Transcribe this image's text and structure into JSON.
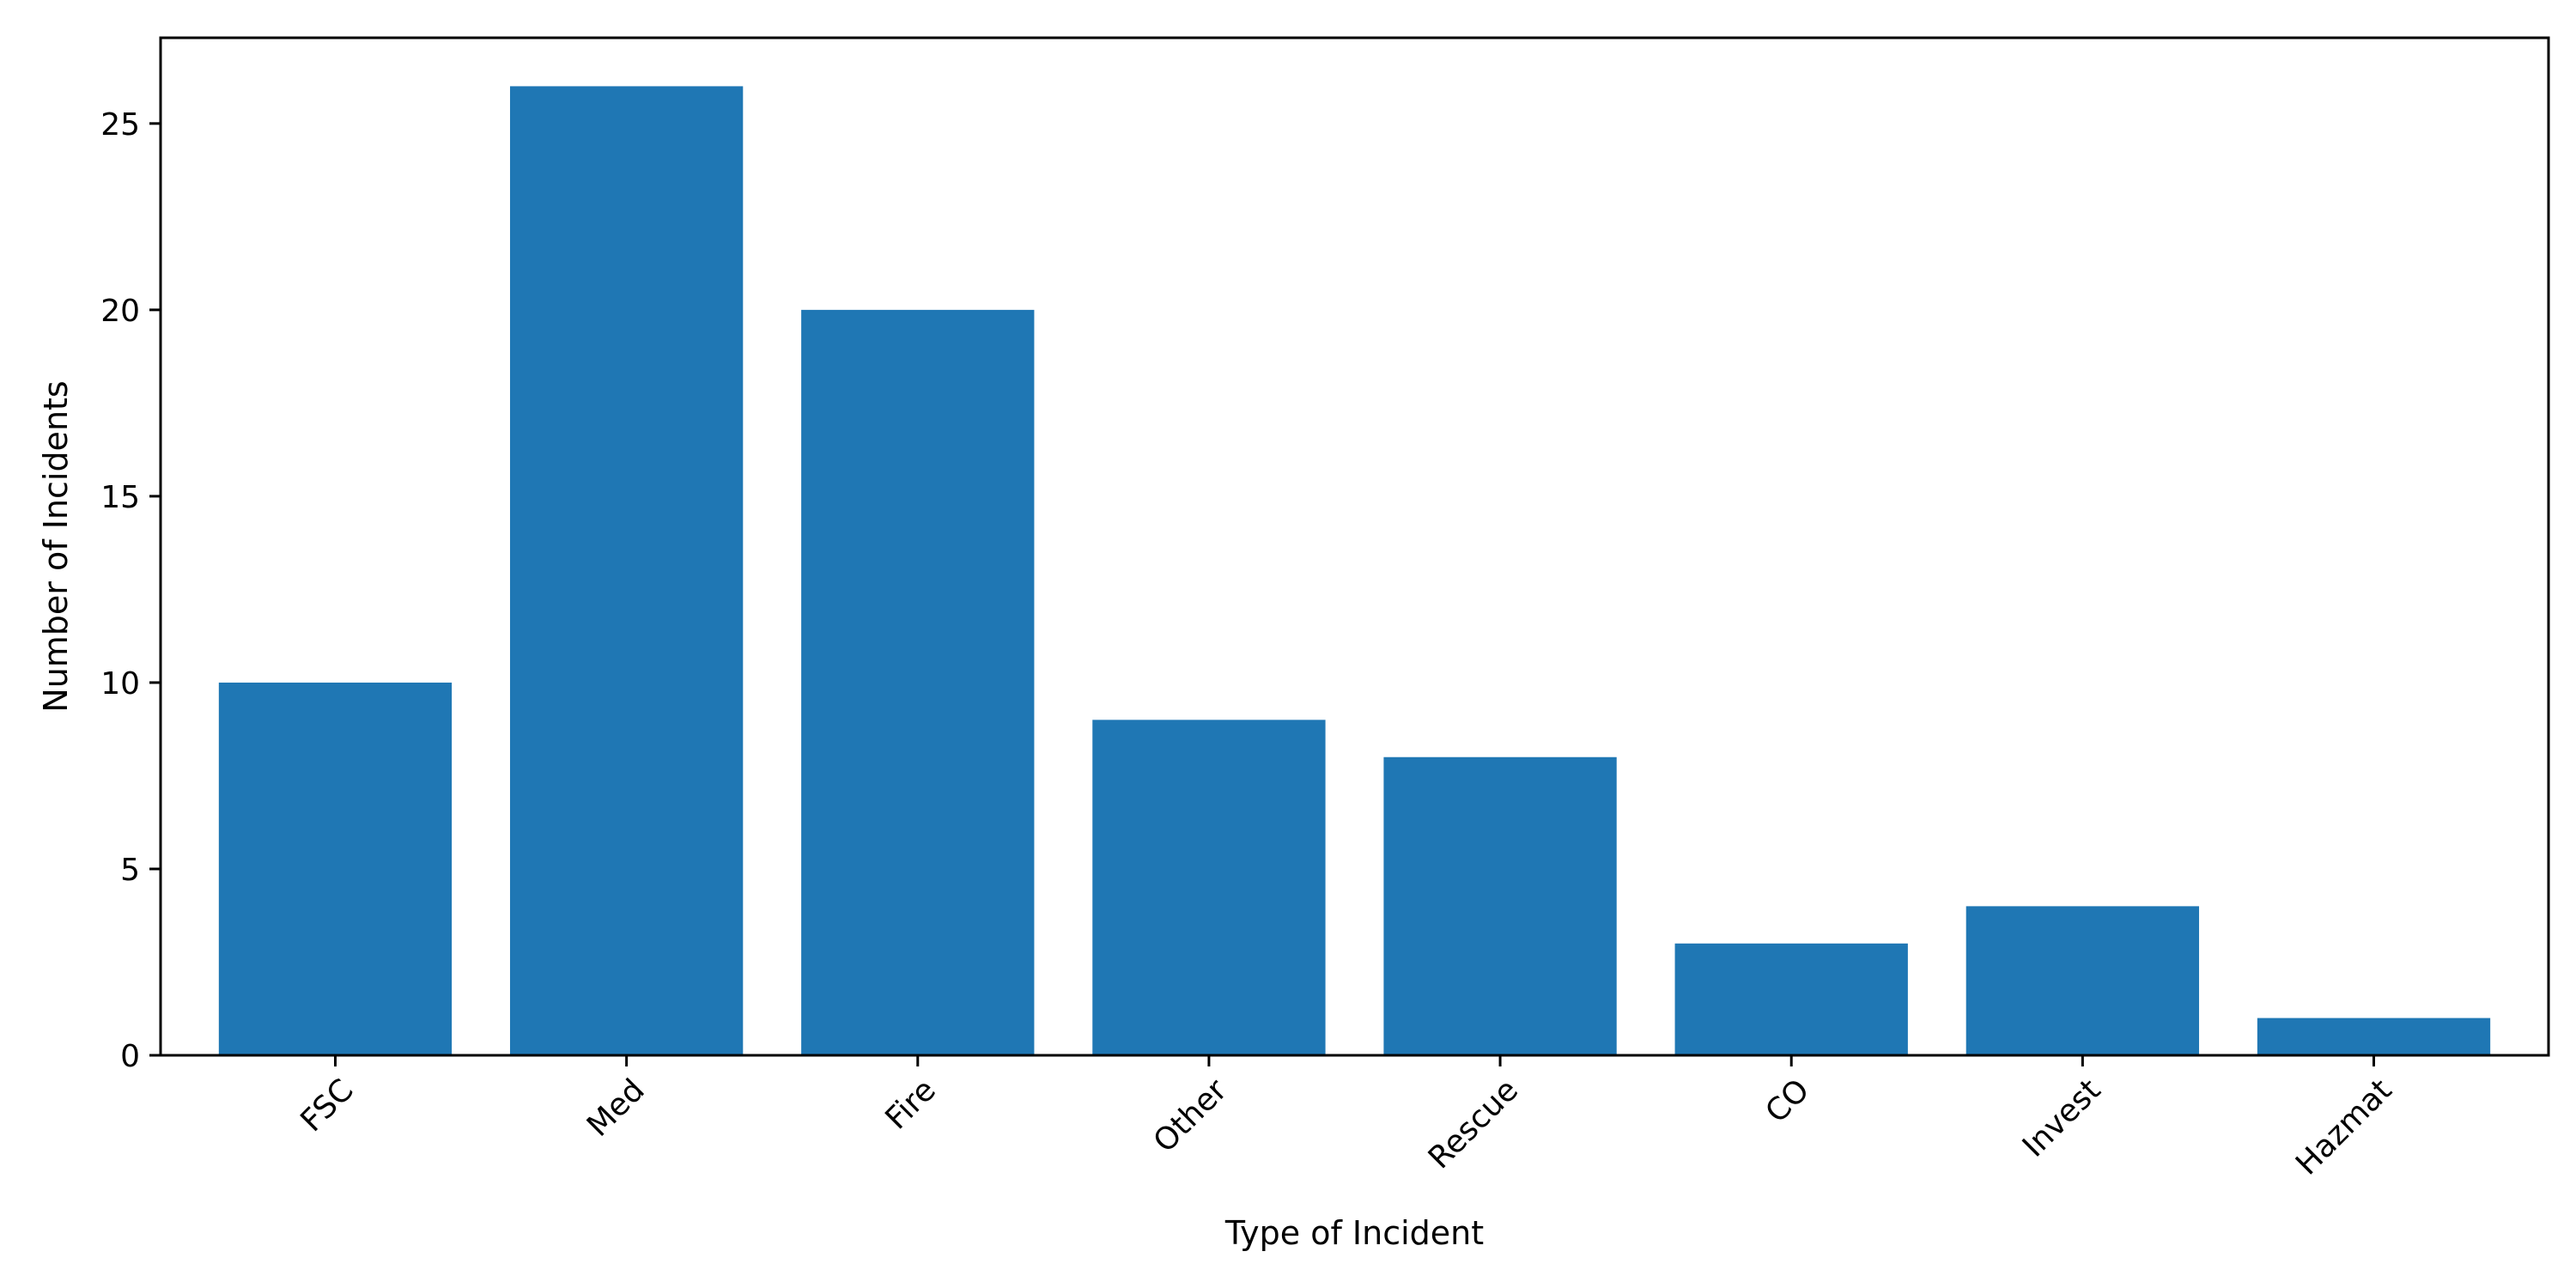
{
  "chart_data": {
    "type": "bar",
    "categories": [
      "FSC",
      "Med",
      "Fire",
      "Other",
      "Rescue",
      "CO",
      "Invest",
      "Hazmat"
    ],
    "values": [
      10,
      26,
      20,
      9,
      8,
      3,
      4,
      1
    ],
    "title": "",
    "xlabel": "Type of Incident",
    "ylabel": "Number of Incidents",
    "ylim": [
      0,
      27.3
    ],
    "yticks": [
      0,
      5,
      10,
      15,
      20,
      25
    ],
    "bar_color": "#1f77b4",
    "grid": false,
    "legend": "none",
    "xtick_rotation_deg": 45
  }
}
